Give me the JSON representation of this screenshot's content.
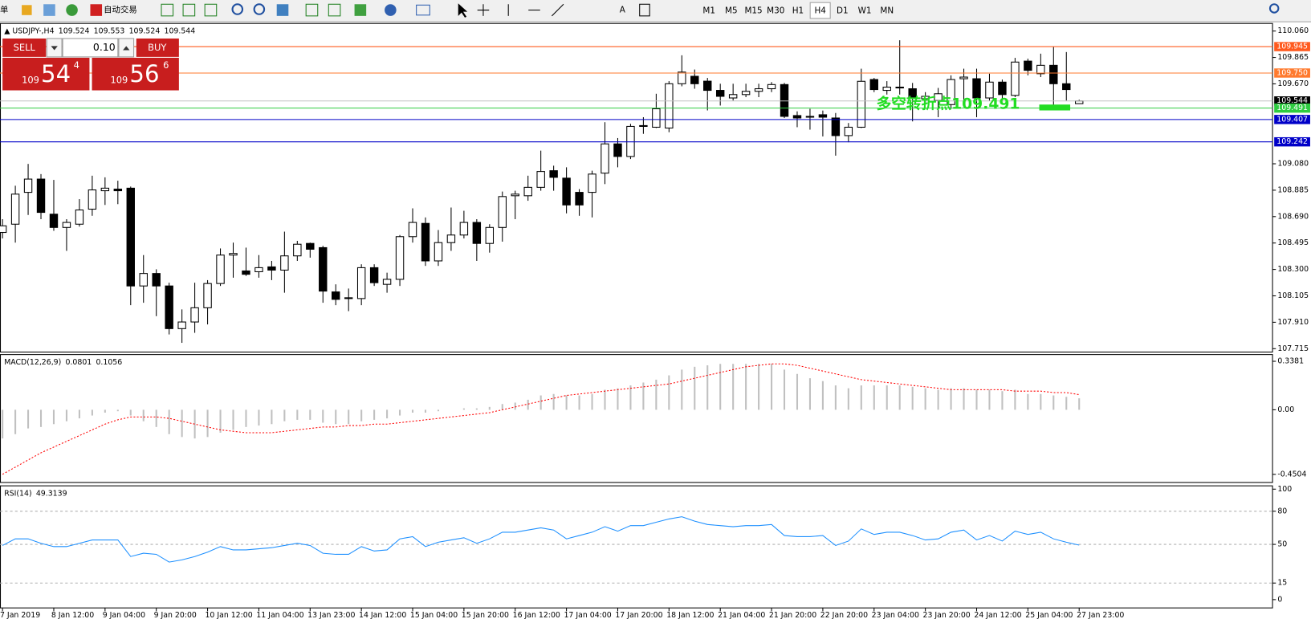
{
  "toolbar": {
    "menu_fragment": "单",
    "auto_trade": "自动交易",
    "font_tool": "A",
    "timeframes": [
      "M1",
      "M5",
      "M15",
      "M30",
      "H1",
      "H4",
      "D1",
      "W1",
      "MN"
    ],
    "active_timeframe": "H4"
  },
  "trade_panel": {
    "sell": "SELL",
    "buy": "BUY",
    "lot": "0.10",
    "sell_price": {
      "big": "109",
      "main": "54",
      "pip": "4"
    },
    "buy_price": {
      "big": "109",
      "main": "56",
      "pip": "6"
    }
  },
  "chart_data": [
    {
      "type": "candlestick",
      "title": "USDJPY-,H4",
      "header_values": [
        109.524,
        109.553,
        109.524,
        109.544
      ],
      "categories": [
        "7 Jan 2019",
        null,
        null,
        null,
        "8 Jan 12:00",
        null,
        null,
        null,
        "9 Jan 04:00",
        null,
        null,
        null,
        "9 Jan 20:00",
        null,
        null,
        null,
        "10 Jan 12:00",
        null,
        null,
        null,
        "11 Jan 04:00",
        null,
        null,
        null,
        "13 Jan 23:00",
        null,
        null,
        null,
        "14 Jan 12:00",
        null,
        null,
        null,
        "15 Jan 04:00",
        null,
        null,
        null,
        "15 Jan 20:00",
        null,
        null,
        null,
        "16 Jan 12:00",
        null,
        null,
        null,
        "17 Jan 04:00",
        null,
        null,
        null,
        "17 Jan 20:00",
        null,
        null,
        null,
        "18 Jan 12:00",
        null,
        null,
        null,
        "21 Jan 04:00",
        null,
        null,
        null,
        "21 Jan 20:00",
        null,
        null,
        null,
        "22 Jan 20:00",
        null,
        null,
        null,
        "23 Jan 04:00",
        null,
        null,
        null,
        "23 Jan 20:00",
        null,
        null,
        null,
        "24 Jan 12:00",
        null,
        null,
        null,
        "25 Jan 04:00",
        null,
        null,
        null,
        "27 Jan 23:00"
      ],
      "open": [
        108.573,
        108.634,
        108.869,
        108.967,
        108.708,
        108.61,
        108.634,
        108.745,
        108.881,
        108.893,
        108.9,
        108.178,
        108.27,
        108.178,
        107.863,
        107.912,
        108.017,
        108.196,
        108.406,
        108.289,
        108.283,
        108.319,
        108.295,
        108.4,
        108.492,
        108.461,
        108.134,
        108.085,
        108.085,
        108.313,
        108.19,
        108.227,
        108.542,
        108.64,
        108.363,
        108.498,
        108.554,
        108.647,
        108.492,
        108.61,
        108.844,
        108.844,
        108.906,
        109.029,
        108.974,
        108.869,
        108.869,
        109.011,
        109.227,
        109.134,
        109.356,
        109.35,
        109.344,
        109.671,
        109.726,
        109.69,
        109.622,
        109.566,
        109.591,
        109.615,
        109.634,
        109.665,
        109.436,
        109.43,
        109.442,
        109.418,
        109.288,
        109.35,
        109.702,
        109.622,
        109.646,
        109.634,
        109.56,
        109.547,
        109.517,
        109.708,
        109.708,
        109.566,
        109.683,
        109.585,
        109.838,
        109.745,
        109.807,
        109.671,
        109.524
      ],
      "high": [
        108.671,
        108.918,
        109.079,
        109.004,
        108.961,
        108.671,
        108.819,
        108.992,
        108.98,
        108.955,
        108.912,
        108.406,
        108.301,
        108.202,
        108.005,
        108.202,
        108.221,
        108.455,
        108.498,
        108.461,
        108.406,
        108.363,
        108.579,
        108.511,
        108.498,
        108.474,
        108.19,
        108.159,
        108.338,
        108.338,
        108.276,
        108.554,
        108.751,
        108.684,
        108.591,
        108.757,
        108.733,
        108.671,
        108.634,
        108.875,
        108.881,
        108.992,
        109.177,
        109.066,
        109.054,
        108.893,
        109.029,
        109.387,
        109.27,
        109.375,
        109.424,
        109.597,
        109.69,
        109.881,
        109.776,
        109.714,
        109.671,
        109.671,
        109.671,
        109.671,
        109.683,
        109.677,
        109.467,
        109.486,
        109.473,
        109.455,
        109.381,
        109.782,
        109.714,
        109.69,
        109.992,
        109.677,
        109.609,
        109.64,
        109.733,
        109.782,
        109.782,
        109.745,
        109.702,
        109.862,
        109.856,
        109.893,
        109.942,
        109.905,
        109.553
      ],
      "low": [
        108.529,
        108.498,
        108.702,
        108.671,
        108.585,
        108.437,
        108.616,
        108.696,
        108.776,
        108.782,
        108.036,
        108.054,
        107.955,
        107.82,
        107.758,
        107.832,
        107.894,
        108.178,
        108.239,
        108.252,
        108.239,
        108.221,
        108.128,
        108.363,
        108.387,
        108.054,
        108.036,
        107.992,
        108.036,
        108.178,
        108.128,
        108.178,
        108.498,
        108.326,
        108.326,
        108.437,
        108.529,
        108.363,
        108.424,
        108.505,
        108.671,
        108.807,
        108.881,
        108.881,
        108.714,
        108.696,
        108.684,
        108.93,
        109.054,
        109.115,
        109.301,
        109.344,
        109.313,
        109.652,
        109.634,
        109.474,
        109.51,
        109.547,
        109.572,
        109.572,
        109.609,
        109.418,
        109.35,
        109.332,
        109.282,
        109.14,
        109.239,
        109.344,
        109.609,
        109.591,
        109.591,
        109.393,
        109.517,
        109.424,
        109.486,
        109.547,
        109.424,
        109.547,
        109.56,
        109.572,
        109.733,
        109.72,
        109.51,
        109.547,
        109.524
      ],
      "close": [
        108.622,
        108.856,
        108.967,
        108.721,
        108.61,
        108.647,
        108.739,
        108.887,
        108.9,
        108.881,
        108.178,
        108.27,
        108.178,
        107.863,
        107.912,
        108.017,
        108.196,
        108.406,
        108.418,
        108.264,
        108.313,
        108.295,
        108.4,
        108.486,
        108.449,
        108.14,
        108.079,
        108.091,
        108.313,
        108.202,
        108.227,
        108.542,
        108.647,
        108.363,
        108.498,
        108.554,
        108.647,
        108.492,
        108.61,
        108.838,
        108.856,
        108.906,
        109.023,
        108.98,
        108.776,
        108.776,
        109.004,
        109.227,
        109.134,
        109.356,
        109.362,
        109.486,
        109.671,
        109.757,
        109.671,
        109.622,
        109.578,
        109.591,
        109.615,
        109.634,
        109.665,
        109.43,
        109.418,
        109.43,
        109.424,
        109.288,
        109.35,
        109.689,
        109.628,
        109.646,
        109.64,
        109.572,
        109.578,
        109.597,
        109.702,
        109.72,
        109.566,
        109.683,
        109.591,
        109.831,
        109.77,
        109.807,
        109.671,
        109.628,
        109.544
      ],
      "up_color": "#ffffff",
      "down_color": "#000000",
      "ylim": [
        107.69,
        110.116
      ],
      "yticks": [
        {
          "value": 110.06,
          "label": "110.060"
        },
        109.865,
        {
          "value": 109.67,
          "label": "109.670"
        },
        {
          "value": 109.08,
          "label": "109.080"
        },
        108.885,
        {
          "value": 108.69,
          "label": "108.690"
        },
        108.495,
        {
          "value": 108.3,
          "label": "108.300"
        },
        108.105,
        {
          "value": 107.91,
          "label": "107.910"
        },
        107.715
      ],
      "levels": [
        {
          "value": 109.945,
          "color": "#ff5a1e"
        },
        {
          "value": 109.75,
          "label": "109.750",
          "color": "#ff7a2e"
        },
        {
          "value": 109.544,
          "color": "#000000",
          "line_color": "#c0c0c0"
        },
        {
          "value": 109.491,
          "color": "#2ecc40"
        },
        {
          "value": 109.407,
          "color": "#0000c8"
        },
        {
          "value": 109.242,
          "color": "#0000c8"
        }
      ],
      "annotation": "多空转折点109.491",
      "annotation_color": "#22dd22"
    },
    {
      "type": "macd",
      "title": "MACD(12,26,9)",
      "header_values": [
        0.0801,
        0.1056
      ],
      "values": [
        -0.2,
        -0.17,
        -0.13,
        -0.12,
        -0.1,
        -0.08,
        -0.06,
        -0.04,
        -0.02,
        -0.01,
        -0.04,
        -0.08,
        -0.12,
        -0.17,
        -0.19,
        -0.2,
        -0.19,
        -0.16,
        -0.14,
        -0.12,
        -0.11,
        -0.1,
        -0.08,
        -0.07,
        -0.07,
        -0.09,
        -0.1,
        -0.1,
        -0.08,
        -0.07,
        -0.06,
        -0.04,
        -0.02,
        -0.02,
        -0.01,
        0.0,
        0.01,
        0.01,
        0.02,
        0.04,
        0.05,
        0.07,
        0.1,
        0.11,
        0.1,
        0.1,
        0.11,
        0.14,
        0.15,
        0.17,
        0.19,
        0.21,
        0.24,
        0.28,
        0.3,
        0.31,
        0.32,
        0.32,
        0.32,
        0.32,
        0.32,
        0.28,
        0.25,
        0.22,
        0.2,
        0.17,
        0.15,
        0.17,
        0.17,
        0.17,
        0.17,
        0.16,
        0.15,
        0.14,
        0.15,
        0.15,
        0.14,
        0.14,
        0.13,
        0.14,
        0.11,
        0.11,
        0.1,
        0.09,
        0.0801
      ],
      "signal": [
        -0.45,
        -0.4,
        -0.35,
        -0.3,
        -0.26,
        -0.22,
        -0.18,
        -0.14,
        -0.1,
        -0.07,
        -0.05,
        -0.05,
        -0.05,
        -0.06,
        -0.08,
        -0.1,
        -0.12,
        -0.14,
        -0.15,
        -0.16,
        -0.16,
        -0.16,
        -0.15,
        -0.14,
        -0.13,
        -0.12,
        -0.12,
        -0.11,
        -0.11,
        -0.1,
        -0.1,
        -0.09,
        -0.08,
        -0.07,
        -0.06,
        -0.05,
        -0.04,
        -0.03,
        -0.02,
        0.0,
        0.02,
        0.04,
        0.06,
        0.08,
        0.1,
        0.11,
        0.12,
        0.13,
        0.14,
        0.15,
        0.16,
        0.17,
        0.18,
        0.2,
        0.22,
        0.24,
        0.26,
        0.28,
        0.3,
        0.31,
        0.32,
        0.32,
        0.31,
        0.29,
        0.27,
        0.25,
        0.23,
        0.21,
        0.2,
        0.19,
        0.18,
        0.17,
        0.16,
        0.15,
        0.14,
        0.14,
        0.14,
        0.14,
        0.14,
        0.13,
        0.13,
        0.13,
        0.12,
        0.12,
        0.1056
      ],
      "color": "#c0c0c0",
      "signal_color": "#ff0000",
      "ylim": [
        -0.507,
        0.385
      ],
      "yticks": [
        0.3381,
        {
          "value": 0,
          "label": "0.00"
        },
        -0.4504
      ]
    },
    {
      "type": "line",
      "title": "RSI(14)",
      "header_values": [
        49.3139
      ],
      "values": [
        49,
        55,
        55,
        51,
        48,
        48,
        51,
        54,
        54,
        54,
        39,
        42,
        41,
        34,
        36,
        39,
        43,
        48,
        45,
        45,
        46,
        47,
        49,
        51,
        49,
        42,
        41,
        41,
        48,
        44,
        45,
        55,
        57,
        48,
        52,
        54,
        56,
        51,
        55,
        61,
        61,
        63,
        65,
        63,
        55,
        58,
        61,
        66,
        62,
        67,
        67,
        70,
        73,
        75,
        71,
        68,
        67,
        66,
        67,
        67,
        68,
        58,
        57,
        57,
        58,
        49,
        53,
        64,
        59,
        61,
        61,
        58,
        54,
        55,
        61,
        63,
        54,
        58,
        53,
        62,
        59,
        61,
        55,
        52,
        49.3139
      ],
      "color": "#1e90ff",
      "ylim": [
        -7.5,
        103
      ],
      "yticks": [
        100,
        80,
        50,
        15,
        0
      ],
      "levels": [
        80,
        50,
        15
      ]
    }
  ]
}
